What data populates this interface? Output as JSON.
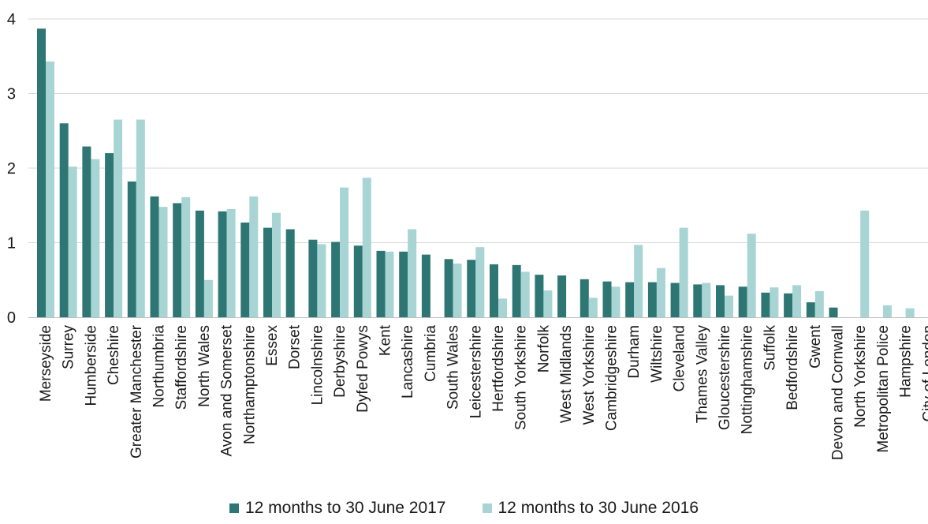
{
  "chart_data": {
    "type": "bar",
    "title": "",
    "xlabel": "",
    "ylabel": "",
    "ylim": [
      0,
      4
    ],
    "yticks": [
      "0",
      "1",
      "2",
      "3",
      "4"
    ],
    "grid": true,
    "legend_position": "bottom",
    "categories": [
      "Merseyside",
      "Surrey",
      "Humberside",
      "Cheshire",
      "Greater Manchester",
      "Northumbria",
      "Staffordshire",
      "North Wales",
      "Avon and Somerset",
      "Northamptonshire",
      "Essex",
      "Dorset",
      "Lincolnshire",
      "Derbyshire",
      "Dyfed Powys",
      "Kent",
      "Lancashire",
      "Cumbria",
      "South Wales",
      "Leicestershire",
      "Hertfordshire",
      "South Yorkshire",
      "Norfolk",
      "West Midlands",
      "West Yorkshire",
      "Cambridgeshire",
      "Durham",
      "Wiltshire",
      "Cleveland",
      "Thames Valley",
      "Gloucestershire",
      "Nottinghamshire",
      "Suffolk",
      "Bedfordshire",
      "Gwent",
      "Devon and Cornwall",
      "North Yorkshire",
      "Metropolitan Police",
      "Hampshire",
      "City of London"
    ],
    "series": [
      {
        "name": "12 months to 30 June 2017",
        "color": "#2e7673",
        "values": [
          3.87,
          2.6,
          2.29,
          2.2,
          1.82,
          1.62,
          1.53,
          1.43,
          1.42,
          1.27,
          1.2,
          1.18,
          1.04,
          1.01,
          0.96,
          0.89,
          0.88,
          0.84,
          0.78,
          0.77,
          0.71,
          0.7,
          0.57,
          0.56,
          0.51,
          0.48,
          0.47,
          0.47,
          0.46,
          0.44,
          0.43,
          0.41,
          0.33,
          0.32,
          0.2,
          0.13,
          0.0,
          0.0,
          0.0,
          0.0
        ]
      },
      {
        "name": "12 months to 30 June 2016",
        "color": "#a8d4d4",
        "values": [
          3.43,
          2.02,
          2.12,
          2.65,
          2.65,
          1.48,
          1.61,
          0.5,
          1.45,
          1.62,
          1.4,
          0.0,
          0.98,
          1.74,
          1.87,
          0.88,
          1.18,
          0.0,
          0.72,
          0.94,
          0.25,
          0.61,
          0.36,
          0.0,
          0.26,
          0.41,
          0.97,
          0.66,
          1.2,
          0.46,
          0.29,
          1.12,
          0.4,
          0.43,
          0.35,
          0.0,
          1.43,
          0.16,
          0.12,
          0.0
        ]
      }
    ]
  }
}
